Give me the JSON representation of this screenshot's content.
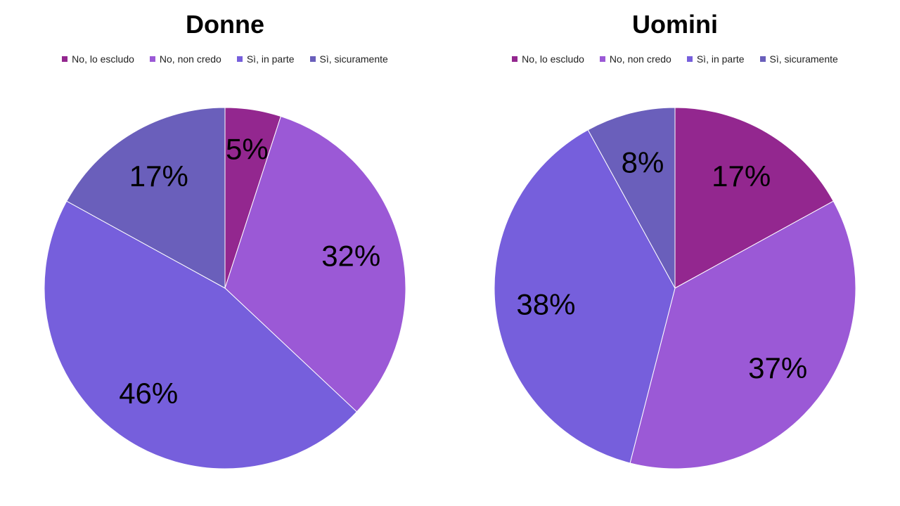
{
  "chart_data": [
    {
      "type": "pie",
      "title": "Donne",
      "categories": [
        "No, lo escludo",
        "No, non credo",
        "Sì, in parte",
        "Sì, sicuramente"
      ],
      "values": [
        5,
        32,
        46,
        17
      ],
      "data_labels": [
        "5%",
        "32%",
        "46%",
        "17%"
      ],
      "colors": [
        "#93278f",
        "#9b59d6",
        "#765fdc",
        "#6a5fbb"
      ],
      "legend_position": "top"
    },
    {
      "type": "pie",
      "title": "Uomini",
      "categories": [
        "No, lo escludo",
        "No, non credo",
        "Sì, in parte",
        "Sì, sicuramente"
      ],
      "values": [
        17,
        37,
        38,
        8
      ],
      "data_labels": [
        "17%",
        "37%",
        "38%",
        "8%"
      ],
      "colors": [
        "#93278f",
        "#9b59d6",
        "#765fdc",
        "#6a5fbb"
      ],
      "legend_position": "top"
    }
  ]
}
